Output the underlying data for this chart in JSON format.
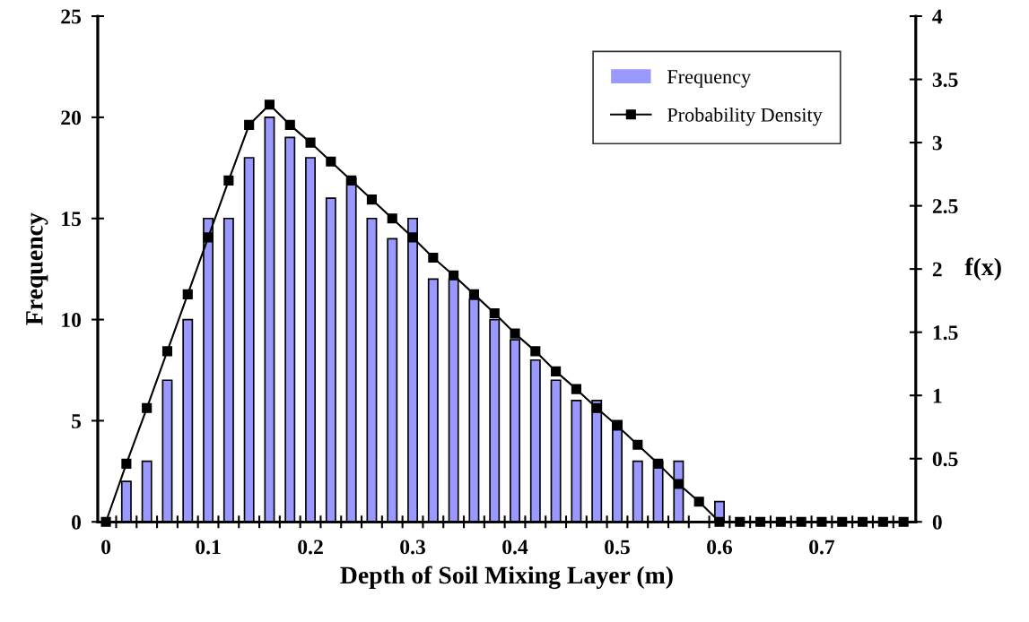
{
  "chart_data": {
    "type": "bar",
    "xlabel": "Depth of Soil Mixing Layer (m)",
    "ylabel": "Frequency",
    "y2label": "f(x)",
    "categories": [
      "0",
      null,
      null,
      null,
      null,
      "0.1",
      null,
      null,
      null,
      null,
      "0.2",
      null,
      null,
      null,
      null,
      "0.3",
      null,
      null,
      null,
      null,
      "0.4",
      null,
      null,
      null,
      null,
      "0.5",
      null,
      null,
      null,
      null,
      "0.6",
      null,
      null,
      null,
      null,
      "0.7",
      null,
      null,
      null,
      null
    ],
    "ylim": [
      0,
      25
    ],
    "yticks": [
      0,
      5,
      10,
      15,
      20,
      25
    ],
    "y2lim": [
      0,
      4
    ],
    "y2ticks": [
      0,
      0.5,
      1,
      1.5,
      2,
      2.5,
      3,
      3.5,
      4
    ],
    "legend": "top right",
    "grid": false,
    "series": [
      {
        "name": "Frequency",
        "color": "#9999ff",
        "values": [
          0,
          2,
          3,
          7,
          10,
          15,
          15,
          18,
          20,
          19,
          18,
          16,
          17,
          15,
          14,
          15,
          12,
          12,
          11,
          10,
          9,
          8,
          7,
          6,
          6,
          5,
          3,
          3,
          3,
          0,
          1,
          0,
          0,
          0,
          0,
          0,
          0,
          0,
          0,
          0
        ]
      },
      {
        "name": "Probability Density",
        "type": "line",
        "axis": "y2",
        "color": "#000000",
        "marker": "square",
        "line_style": "solid",
        "values": [
          0,
          0.46,
          0.9,
          1.35,
          1.8,
          2.25,
          2.7,
          3.14,
          3.3,
          3.14,
          3.0,
          2.85,
          2.7,
          2.55,
          2.4,
          2.25,
          2.09,
          1.95,
          1.8,
          1.65,
          1.49,
          1.35,
          1.19,
          1.05,
          0.9,
          0.76,
          0.61,
          0.46,
          0.3,
          0.16,
          0,
          0,
          0,
          0,
          0,
          0,
          0,
          0,
          0,
          0
        ]
      }
    ]
  }
}
